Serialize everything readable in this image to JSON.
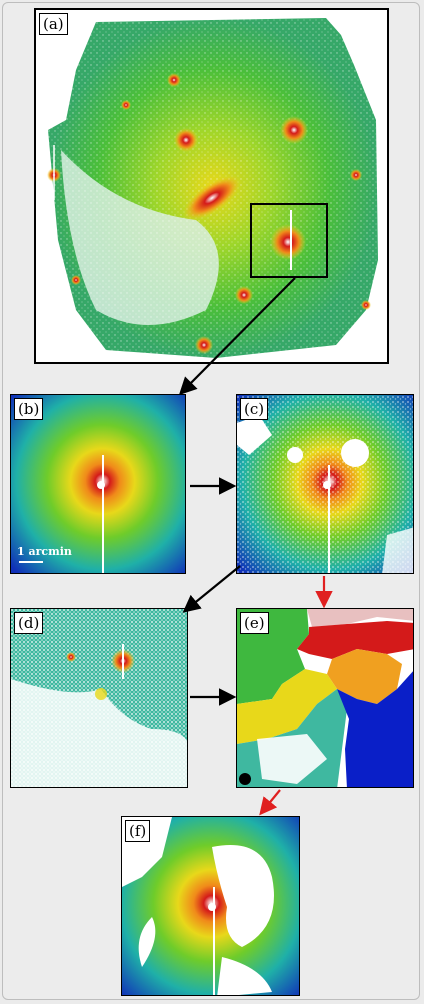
{
  "panels": {
    "a": {
      "label": "(a)"
    },
    "b": {
      "label": "(b)",
      "scale_text": "1 arcmin"
    },
    "c": {
      "label": "(c)"
    },
    "d": {
      "label": "(d)"
    },
    "e": {
      "label": "(e)"
    },
    "f": {
      "label": "(f)"
    }
  },
  "colors": {
    "arrow_black": "#000000",
    "arrow_red": "#e02020",
    "green": "#3fb83f",
    "yellow": "#e8d81a",
    "orange": "#f08a1a",
    "red": "#d41a1a",
    "blue": "#0a1fc8",
    "cyan": "#1fb0c8"
  },
  "flow": [
    {
      "from": "a",
      "to": "b",
      "color": "black"
    },
    {
      "from": "b",
      "to": "c",
      "color": "black"
    },
    {
      "from": "c",
      "to": "d",
      "color": "black"
    },
    {
      "from": "d",
      "to": "e",
      "color": "black"
    },
    {
      "from": "c",
      "to": "e",
      "color": "red"
    },
    {
      "from": "e",
      "to": "f",
      "color": "red"
    }
  ]
}
